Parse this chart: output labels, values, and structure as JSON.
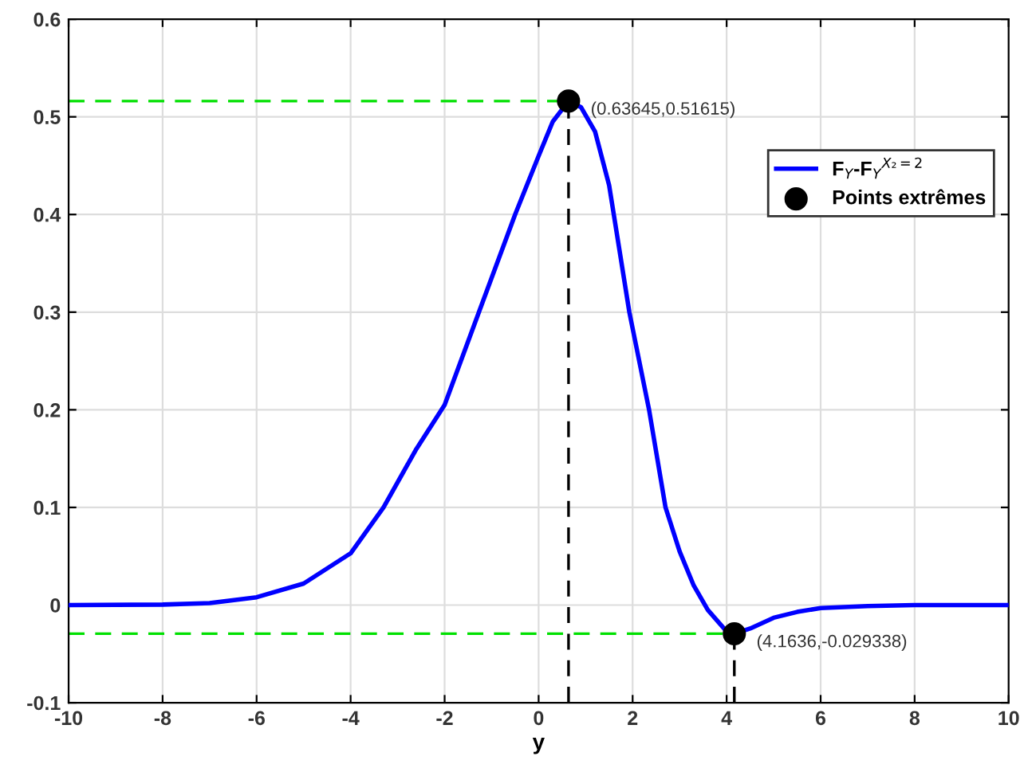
{
  "chart_data": {
    "type": "line",
    "xlabel": "y",
    "xlim": [
      -10,
      10
    ],
    "xticks": [
      -10,
      -8,
      -6,
      -4,
      -2,
      0,
      2,
      4,
      6,
      8,
      10
    ],
    "ylim": [
      -0.1,
      0.6
    ],
    "yticks": [
      -0.1,
      0,
      0.1,
      0.2,
      0.3,
      0.4,
      0.5,
      0.6
    ],
    "grid": true,
    "legend": "right",
    "series": [
      {
        "color": "#00e000",
        "line_style": "dashed",
        "x": [
          -10,
          0.63645
        ],
        "values": [
          0.51615,
          0.51615
        ]
      },
      {
        "color": "#00e000",
        "line_style": "dashed",
        "x": [
          -10,
          4.1636
        ],
        "values": [
          -0.029338,
          -0.029338
        ]
      },
      {
        "color": "#000000",
        "line_style": "dashed",
        "x": [
          0.63645,
          0.63645
        ],
        "values": [
          -0.1,
          0.51615
        ]
      },
      {
        "color": "#000000",
        "line_style": "dashed",
        "x": [
          4.1636,
          4.1636
        ],
        "values": [
          -0.1,
          -0.029338
        ]
      },
      {
        "name": "F$_{Y}$-F$_{Y}$$^{X₂=2}$",
        "color": "#0000ff",
        "line_style": "solid",
        "marker": "none",
        "x": [
          -10,
          -8,
          -7,
          -6,
          -5,
          -4,
          -3.3,
          -2.6,
          -2,
          -1.27,
          -0.5,
          0,
          0.3,
          0.63645,
          0.9,
          1.2,
          1.5,
          1.93,
          2.35,
          2.7,
          3,
          3.3,
          3.6,
          4,
          4.1636,
          4.5,
          5,
          5.5,
          6,
          7,
          8,
          10
        ],
        "values": [
          0,
          0.0005,
          0.002,
          0.008,
          0.022,
          0.053,
          0.1,
          0.16,
          0.205,
          0.3,
          0.4,
          0.46,
          0.495,
          0.51615,
          0.51,
          0.485,
          0.43,
          0.3,
          0.2,
          0.1,
          0.055,
          0.02,
          -0.005,
          -0.027,
          -0.029338,
          -0.024,
          -0.013,
          -0.007,
          -0.003,
          -0.001,
          0,
          0
        ]
      },
      {
        "type": "scatter",
        "name": "Points extrêmes",
        "color": "#000000",
        "marker": "circle",
        "x": [
          0.63645,
          4.1636
        ],
        "values": [
          0.51615,
          -0.029338
        ]
      }
    ],
    "annotations": [
      {
        "text": "(0.63645,0.51615)",
        "x": 0.63645,
        "y": 0.51615
      },
      {
        "text": "(4.1636,-0.029338)",
        "x": 4.1636,
        "y": -0.029338
      }
    ]
  }
}
